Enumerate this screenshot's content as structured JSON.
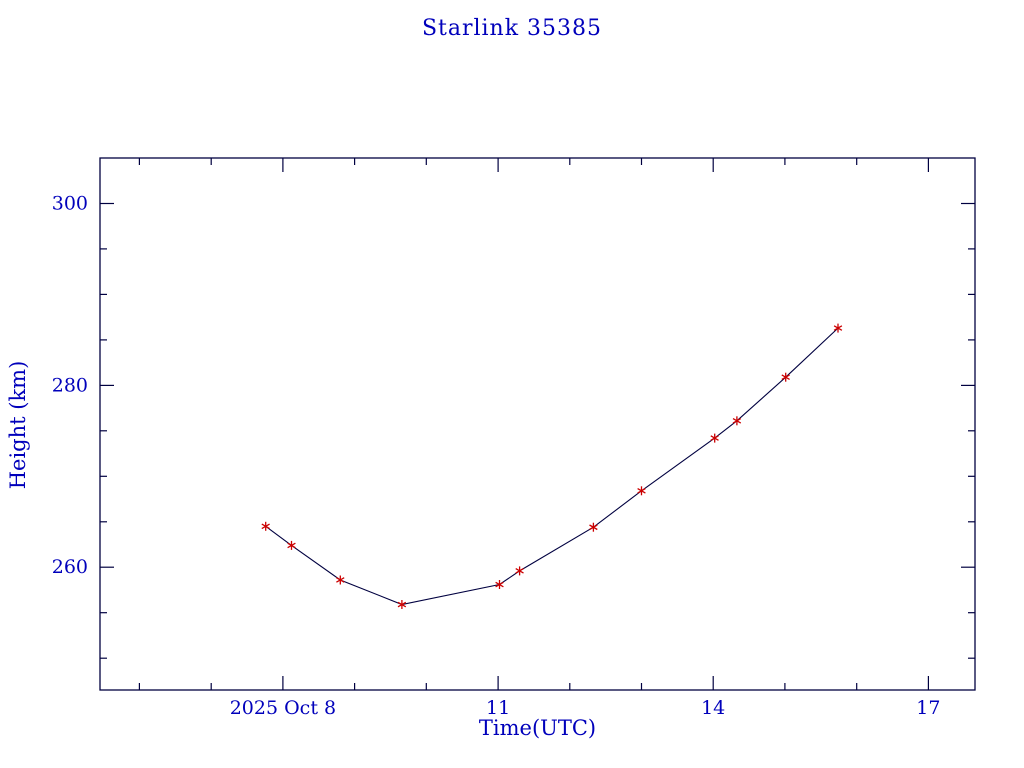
{
  "chart_data": {
    "type": "line",
    "title": "Starlink 35385",
    "xlabel": "Time(UTC)",
    "ylabel": "Height (km)",
    "x_unit": "day of October 2025 (UTC)",
    "x": [
      7.76,
      8.12,
      8.8,
      9.66,
      11.02,
      11.3,
      12.33,
      13.0,
      14.02,
      14.33,
      15.01,
      15.74
    ],
    "y": [
      264.5,
      262.4,
      258.6,
      255.9,
      258.1,
      259.6,
      264.4,
      268.4,
      274.2,
      276.1,
      280.9,
      286.3
    ],
    "xlim": [
      5.45,
      17.65
    ],
    "ylim": [
      246.5,
      305.0
    ],
    "x_major_ticks": [
      8,
      11,
      14,
      17
    ],
    "x_major_labels": [
      "2025 Oct 8",
      "11",
      "14",
      "17"
    ],
    "x_minor_step": 1,
    "y_major_ticks": [
      260,
      280,
      300
    ],
    "y_major_labels": [
      "260",
      "280",
      "300"
    ],
    "y_minor_step": 5,
    "grid": false,
    "legend": null,
    "marker": "asterisk",
    "marker_color": "#cc0000",
    "line_color": "#000040",
    "axis_color": "#000040",
    "text_color": "#0000bb",
    "background": "#ffffff"
  }
}
